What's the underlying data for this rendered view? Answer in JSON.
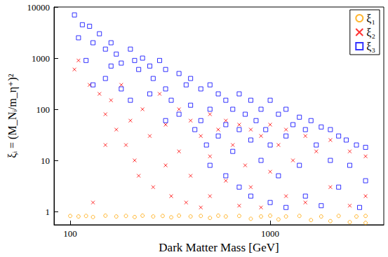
{
  "chart_data": {
    "type": "scatter",
    "x_label": "Dark Matter Mass [GeV]",
    "y_label": "ξᵢ = (M_Nᵢ/m_η⁺)²",
    "log": true,
    "grid": false,
    "legend": "top-right",
    "xlim": [
      83,
      3700
    ],
    "xticks": [
      100,
      1000
    ],
    "ylim": [
      0.55,
      10000
    ],
    "yticks": [
      1,
      10,
      100,
      1000,
      10000
    ],
    "series": [
      {
        "name": "ξ₁",
        "color": "#ffa500",
        "marker": "circle",
        "values": [
          [
            100,
            0.82
          ],
          [
            110,
            0.8
          ],
          [
            120,
            0.82
          ],
          [
            130,
            0.78
          ],
          [
            150,
            0.83
          ],
          [
            170,
            0.8
          ],
          [
            190,
            0.82
          ],
          [
            210,
            0.78
          ],
          [
            230,
            0.83
          ],
          [
            260,
            0.8
          ],
          [
            290,
            0.82
          ],
          [
            320,
            0.77
          ],
          [
            350,
            0.83
          ],
          [
            400,
            0.8
          ],
          [
            450,
            0.82
          ],
          [
            500,
            0.75
          ],
          [
            550,
            0.83
          ],
          [
            600,
            0.8
          ],
          [
            700,
            0.82
          ],
          [
            800,
            0.72
          ],
          [
            900,
            0.8
          ],
          [
            1000,
            0.83
          ],
          [
            1100,
            0.7
          ],
          [
            1200,
            0.8
          ],
          [
            1400,
            0.82
          ],
          [
            1600,
            0.68
          ],
          [
            1800,
            0.8
          ],
          [
            2000,
            0.65
          ],
          [
            2200,
            0.82
          ],
          [
            2500,
            0.62
          ],
          [
            2700,
            0.8
          ],
          [
            3000,
            0.6
          ],
          [
            3000,
            0.82
          ]
        ]
      },
      {
        "name": "ξ₂",
        "color": "#ff0000",
        "marker": "x",
        "values": [
          [
            105,
            600
          ],
          [
            110,
            900
          ],
          [
            125,
            300
          ],
          [
            140,
            200
          ],
          [
            150,
            80
          ],
          [
            160,
            150
          ],
          [
            170,
            40
          ],
          [
            180,
            300
          ],
          [
            190,
            20
          ],
          [
            200,
            60
          ],
          [
            210,
            10
          ],
          [
            220,
            5
          ],
          [
            230,
            100
          ],
          [
            250,
            30
          ],
          [
            260,
            3
          ],
          [
            280,
            200
          ],
          [
            300,
            50
          ],
          [
            300,
            8
          ],
          [
            320,
            2
          ],
          [
            350,
            100
          ],
          [
            350,
            15
          ],
          [
            380,
            1.5
          ],
          [
            400,
            60
          ],
          [
            400,
            5
          ],
          [
            450,
            30
          ],
          [
            450,
            1.2
          ],
          [
            500,
            80
          ],
          [
            500,
            12
          ],
          [
            500,
            2
          ],
          [
            550,
            40
          ],
          [
            600,
            60
          ],
          [
            600,
            4
          ],
          [
            650,
            20
          ],
          [
            700,
            50
          ],
          [
            700,
            1.3
          ],
          [
            750,
            8
          ],
          [
            800,
            40
          ],
          [
            800,
            3
          ],
          [
            900,
            30
          ],
          [
            900,
            1.2
          ],
          [
            1000,
            50
          ],
          [
            1000,
            6
          ],
          [
            1100,
            20
          ],
          [
            1200,
            40
          ],
          [
            1200,
            2
          ],
          [
            1300,
            10
          ],
          [
            1500,
            30
          ],
          [
            1500,
            1.5
          ],
          [
            1700,
            15
          ],
          [
            2000,
            25
          ],
          [
            2000,
            3
          ],
          [
            2500,
            15
          ],
          [
            2500,
            1.3
          ],
          [
            3000,
            12
          ],
          [
            3000,
            2
          ],
          [
            150,
            20
          ],
          [
            130,
            1.5
          ]
        ]
      },
      {
        "name": "ξ₃",
        "color": "#0000ff",
        "marker": "square",
        "values": [
          [
            105,
            7000
          ],
          [
            115,
            4500
          ],
          [
            125,
            4200
          ],
          [
            110,
            2500
          ],
          [
            130,
            2000
          ],
          [
            140,
            3000
          ],
          [
            150,
            1500
          ],
          [
            120,
            900
          ],
          [
            160,
            2000
          ],
          [
            170,
            1200
          ],
          [
            180,
            800
          ],
          [
            200,
            1500
          ],
          [
            210,
            900
          ],
          [
            220,
            600
          ],
          [
            150,
            400
          ],
          [
            180,
            250
          ],
          [
            200,
            150
          ],
          [
            230,
            1000
          ],
          [
            250,
            700
          ],
          [
            260,
            400
          ],
          [
            280,
            900
          ],
          [
            300,
            600
          ],
          [
            300,
            250
          ],
          [
            320,
            150
          ],
          [
            350,
            500
          ],
          [
            350,
            80
          ],
          [
            380,
            300
          ],
          [
            400,
            400
          ],
          [
            400,
            120
          ],
          [
            420,
            40
          ],
          [
            450,
            250
          ],
          [
            450,
            60
          ],
          [
            480,
            20
          ],
          [
            500,
            300
          ],
          [
            500,
            100
          ],
          [
            500,
            8
          ],
          [
            550,
            200
          ],
          [
            550,
            30
          ],
          [
            600,
            150
          ],
          [
            600,
            50
          ],
          [
            600,
            5
          ],
          [
            650,
            100
          ],
          [
            650,
            15
          ],
          [
            700,
            200
          ],
          [
            700,
            40
          ],
          [
            700,
            3
          ],
          [
            750,
            80
          ],
          [
            800,
            150
          ],
          [
            800,
            25
          ],
          [
            800,
            2
          ],
          [
            850,
            60
          ],
          [
            900,
            100
          ],
          [
            900,
            10
          ],
          [
            950,
            40
          ],
          [
            1000,
            150
          ],
          [
            1000,
            20
          ],
          [
            1000,
            1.5
          ],
          [
            1100,
            80
          ],
          [
            1100,
            5
          ],
          [
            1200,
            100
          ],
          [
            1200,
            30
          ],
          [
            1200,
            1.2
          ],
          [
            1300,
            50
          ],
          [
            1400,
            70
          ],
          [
            1400,
            8
          ],
          [
            1500,
            40
          ],
          [
            1500,
            2
          ],
          [
            1600,
            60
          ],
          [
            1700,
            20
          ],
          [
            1800,
            45
          ],
          [
            1800,
            1.3
          ],
          [
            2000,
            40
          ],
          [
            2000,
            10
          ],
          [
            2200,
            30
          ],
          [
            2200,
            3
          ],
          [
            2400,
            25
          ],
          [
            2500,
            8
          ],
          [
            2700,
            20
          ],
          [
            2800,
            1.2
          ],
          [
            3000,
            18
          ],
          [
            3000,
            4
          ],
          [
            250,
            200
          ],
          [
            300,
            60
          ],
          [
            160,
            700
          ],
          [
            130,
            300
          ]
        ]
      }
    ]
  }
}
